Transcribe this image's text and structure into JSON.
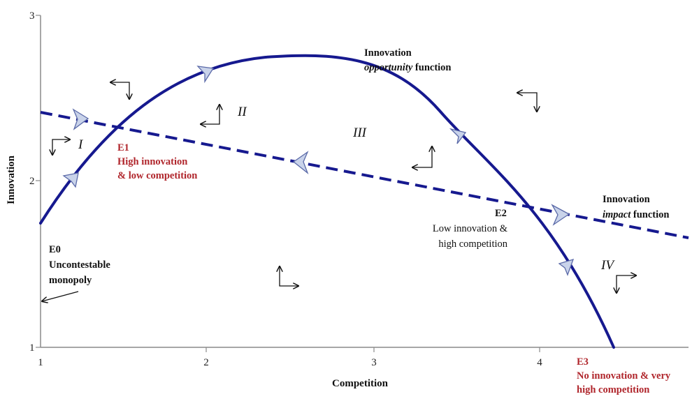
{
  "chart_data": {
    "type": "line",
    "xlabel": "Competition",
    "ylabel": "Innovation",
    "xlim": [
      1,
      4.9
    ],
    "ylim": [
      1,
      3
    ],
    "x_ticks": [
      "1",
      "2",
      "3",
      "4"
    ],
    "y_ticks": [
      "1",
      "2",
      "3"
    ],
    "grid": false,
    "series": [
      {
        "name_line1": "Innovation",
        "name_italic": "opportunity",
        "name_suffix": " function",
        "style": "solid",
        "points": [
          [
            1.0,
            1.76
          ],
          [
            1.2,
            2.0
          ],
          [
            1.5,
            2.3
          ],
          [
            2.0,
            2.63
          ],
          [
            2.5,
            2.74
          ],
          [
            3.0,
            2.6
          ],
          [
            3.5,
            2.27
          ],
          [
            3.9,
            1.85
          ],
          [
            4.2,
            1.47
          ],
          [
            4.45,
            1.0
          ]
        ]
      },
      {
        "name_line1": "Innovation",
        "name_italic": "impact",
        "name_suffix": " function",
        "style": "dashed",
        "points": [
          [
            1.0,
            2.4
          ],
          [
            4.8,
            1.67
          ]
        ]
      }
    ],
    "points": [
      {
        "id": "E0",
        "title": "E0",
        "desc": [
          "Uncontestable",
          "monopoly"
        ]
      },
      {
        "id": "E1",
        "title": "E1",
        "desc": [
          "High innovation",
          "& low competition"
        ]
      },
      {
        "id": "E2",
        "title": "E2",
        "desc": [
          "Low innovation &",
          "high competition"
        ]
      },
      {
        "id": "E3",
        "title": "E3",
        "desc": [
          "No innovation & very",
          "high competition"
        ]
      }
    ],
    "regions": [
      "I",
      "II",
      "III",
      "IV"
    ]
  }
}
